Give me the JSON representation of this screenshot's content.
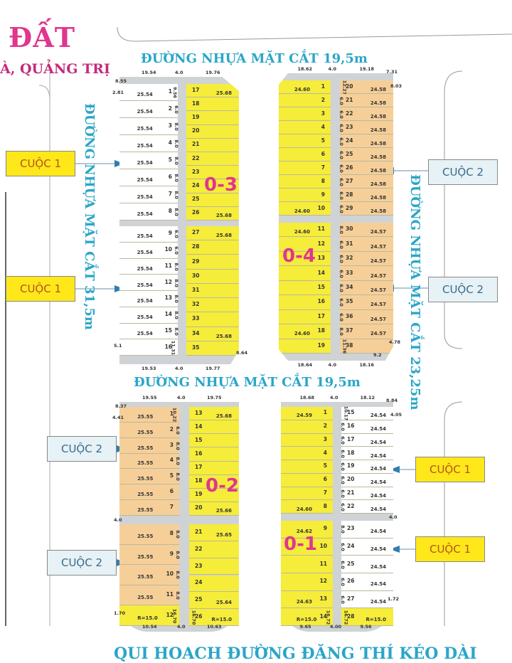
{
  "title": {
    "main": "ĐẤT",
    "sub": "À, QUẢNG TRỊ"
  },
  "roads": {
    "top": "ĐƯỜNG NHỰA MẶT CẮT 19,5m",
    "middle": "ĐƯỜNG NHỰA MẶT CẮT 19,5m",
    "left": "ĐƯỜNG NHỰA MẶT CẮT 31,5m",
    "right": "ĐƯỜNG NHỰA MẶT CẮT 23,25m",
    "bottom": "QUI HOACH ĐƯỜNG  ĐĂNG THÍ KÉO DÀI"
  },
  "colors": {
    "yellow": "#f6ec3a",
    "orange": "#f6cf98",
    "white": "#ffffff",
    "road": "#cfd3d6",
    "label": "#e0368f",
    "road_text": "#2aa6c8",
    "arrow": "#2f7fb0"
  },
  "callouts": [
    {
      "label": "CUỘC 1",
      "type": "c1"
    },
    {
      "label": "CUỘC 1",
      "type": "c1"
    },
    {
      "label": "CUỘC 2",
      "type": "c2"
    },
    {
      "label": "CUỘC 2",
      "type": "c2"
    },
    {
      "label": "CUỘC 2",
      "type": "c2"
    },
    {
      "label": "CUỘC 2",
      "type": "c2"
    },
    {
      "label": "CUỘC 1",
      "type": "c1"
    },
    {
      "label": "CUỘC 1",
      "type": "c1"
    }
  ],
  "blocks": [
    {
      "label": "0-3",
      "dims_top": [
        "19.54",
        "4.0",
        "19.76"
      ],
      "dims_bottom": [
        "19.53",
        "4.0",
        "19.77"
      ],
      "dims_edge": [
        "8.55",
        "2.81",
        "5.1",
        "8.64"
      ],
      "left": {
        "color": "#ffffff",
        "sections": [
          [
            {
              "no": "1",
              "len": "25.54",
              "w": "9.56"
            },
            {
              "no": "2",
              "len": "25.54",
              "w": "6.0"
            },
            {
              "no": "3",
              "len": "25.54",
              "w": "8.0"
            },
            {
              "no": "4",
              "len": "25.54",
              "w": "8.0"
            },
            {
              "no": "5",
              "len": "25.54",
              "w": "8.0"
            },
            {
              "no": "6",
              "len": "25.54",
              "w": "8.0"
            },
            {
              "no": "7",
              "len": "25.54",
              "w": "8.0"
            },
            {
              "no": "8",
              "len": "25.54",
              "w": "8.0"
            }
          ],
          [
            {
              "no": "9",
              "len": "25.54",
              "w": "6.0"
            },
            {
              "no": "10",
              "len": "25.54",
              "w": "6.0"
            },
            {
              "no": "11",
              "len": "25.54",
              "w": "8.0"
            },
            {
              "no": "12",
              "len": "25.54",
              "w": "8.0"
            },
            {
              "no": "13",
              "len": "25.54",
              "w": "8.0"
            },
            {
              "no": "14",
              "len": "25.54",
              "w": "8.0"
            },
            {
              "no": "15",
              "len": "25.54",
              "w": "8.0"
            },
            {
              "no": "16",
              "len": "",
              "w": "11.31"
            }
          ]
        ]
      },
      "right": {
        "color": "#f6ec3a",
        "sections": [
          [
            {
              "no": "17",
              "len": "25.68"
            },
            {
              "no": "18"
            },
            {
              "no": "19"
            },
            {
              "no": "20"
            },
            {
              "no": "21"
            },
            {
              "no": "22"
            },
            {
              "no": "23"
            },
            {
              "no": "24"
            },
            {
              "no": "25"
            },
            {
              "no": "26",
              "len": "25.68"
            }
          ],
          [
            {
              "no": "27",
              "len": "25.68"
            },
            {
              "no": "28"
            },
            {
              "no": "29"
            },
            {
              "no": "30"
            },
            {
              "no": "31"
            },
            {
              "no": "32"
            },
            {
              "no": "33"
            },
            {
              "no": "34",
              "len": "25.68"
            },
            {
              "no": "35"
            }
          ]
        ]
      }
    },
    {
      "label": "0-4",
      "dims_top": [
        "18.62",
        "4.0",
        "19.18"
      ],
      "dims_bottom": [
        "18.64",
        "4.0",
        "18.16"
      ],
      "dims_edge": [
        "7.31",
        "8.03",
        "9.2",
        "4.78"
      ],
      "left": {
        "color": "#f6ec3a",
        "sections": [
          [
            {
              "no": "1",
              "len": "24.60"
            },
            {
              "no": "2"
            },
            {
              "no": "3"
            },
            {
              "no": "4"
            },
            {
              "no": "5"
            },
            {
              "no": "6"
            },
            {
              "no": "7"
            },
            {
              "no": "8"
            },
            {
              "no": "9"
            },
            {
              "no": "10",
              "len": "24.60"
            }
          ],
          [
            {
              "no": "11",
              "len": "24.60"
            },
            {
              "no": "12"
            },
            {
              "no": "13"
            },
            {
              "no": "14"
            },
            {
              "no": "15"
            },
            {
              "no": "16"
            },
            {
              "no": "17"
            },
            {
              "no": "18",
              "len": "24.60"
            },
            {
              "no": "19"
            }
          ]
        ]
      },
      "right": {
        "color": "#f6cf98",
        "sections": [
          [
            {
              "no": "20",
              "len": "24.58",
              "w": "12.27"
            },
            {
              "no": "21",
              "len": "24.58",
              "w": "6.0"
            },
            {
              "no": "22",
              "len": "24.58",
              "w": "6.0"
            },
            {
              "no": "23",
              "len": "24.58",
              "w": "6.0"
            },
            {
              "no": "24",
              "len": "24.58",
              "w": "6.0"
            },
            {
              "no": "25",
              "len": "24.58",
              "w": "6.0"
            },
            {
              "no": "26",
              "len": "24.58",
              "w": "6.0"
            },
            {
              "no": "27",
              "len": "24.58",
              "w": "6.0"
            },
            {
              "no": "28",
              "len": "24.58",
              "w": "6.0"
            },
            {
              "no": "29",
              "len": "24.58",
              "w": "6.0"
            }
          ],
          [
            {
              "no": "30",
              "len": "24.57",
              "w": "8.0"
            },
            {
              "no": "31",
              "len": "24.57",
              "w": "6.0"
            },
            {
              "no": "32",
              "len": "24.57",
              "w": "6.0"
            },
            {
              "no": "33",
              "len": "24.57",
              "w": "6.0"
            },
            {
              "no": "34",
              "len": "24.57",
              "w": "6.0"
            },
            {
              "no": "35",
              "len": "24.57",
              "w": "6.0"
            },
            {
              "no": "36",
              "len": "24.57",
              "w": "6.0"
            },
            {
              "no": "37",
              "len": "24.57",
              "w": "8.0"
            },
            {
              "no": "38",
              "w": "11.36"
            }
          ]
        ]
      }
    },
    {
      "label": "0-2",
      "dims_top": [
        "19.55",
        "4.0",
        "19.75"
      ],
      "dims_bottom": [
        "10.54",
        "4.0",
        "10.63"
      ],
      "dims_edge": [
        "8.37",
        "4.41",
        "1.70",
        "4.0"
      ],
      "left": {
        "color": "#f6cf98",
        "sections": [
          [
            {
              "no": "1",
              "len": "25.55",
              "w": "10.22"
            },
            {
              "no": "2",
              "len": "25.55",
              "w": "6.0"
            },
            {
              "no": "3",
              "len": "25.55",
              "w": "8.0"
            },
            {
              "no": "4",
              "len": "25.55",
              "w": "8.0"
            },
            {
              "no": "5",
              "len": "25.55",
              "w": "8.0"
            },
            {
              "no": "6",
              "len": "25.55"
            },
            {
              "no": "7",
              "len": "25.55"
            }
          ],
          [
            {
              "no": "8",
              "len": "25.55",
              "w": "8.0"
            },
            {
              "no": "9",
              "len": "25.55",
              "w": "8.0"
            },
            {
              "no": "10",
              "len": "25.55",
              "w": "8.0"
            },
            {
              "no": "11",
              "len": "25.55",
              "w": "8.0"
            },
            {
              "no": "12",
              "len": "R=15.0",
              "w": "16.70",
              "color": "#f6ec3a"
            }
          ]
        ]
      },
      "right": {
        "color": "#f6ec3a",
        "sections": [
          [
            {
              "no": "13",
              "len": "25.68"
            },
            {
              "no": "14"
            },
            {
              "no": "15"
            },
            {
              "no": "16"
            },
            {
              "no": "17"
            },
            {
              "no": "18"
            },
            {
              "no": "19"
            },
            {
              "no": "20",
              "len": "25.66"
            }
          ],
          [
            {
              "no": "21",
              "len": "25.65"
            },
            {
              "no": "22"
            },
            {
              "no": "23"
            },
            {
              "no": "24"
            },
            {
              "no": "25",
              "len": "25.64"
            },
            {
              "no": "26",
              "len": "R=15.0",
              "w": "16.70"
            }
          ]
        ]
      }
    },
    {
      "label": "0-1",
      "dims_top": [
        "18.68",
        "4.0",
        "18.12"
      ],
      "dims_bottom": [
        "9.65",
        "4.00",
        "9.56"
      ],
      "dims_edge": [
        "8.84",
        "4.05",
        "1.72",
        "4.0"
      ],
      "left": {
        "color": "#f6ec3a",
        "sections": [
          [
            {
              "no": "1",
              "len": "24.59"
            },
            {
              "no": "2"
            },
            {
              "no": "3"
            },
            {
              "no": "4"
            },
            {
              "no": "5"
            },
            {
              "no": "6"
            },
            {
              "no": "7"
            },
            {
              "no": "8",
              "len": "24.60"
            }
          ],
          [
            {
              "no": "9",
              "len": "24.62"
            },
            {
              "no": "10"
            },
            {
              "no": "11"
            },
            {
              "no": "12"
            },
            {
              "no": "13",
              "len": "24.63"
            },
            {
              "no": "14",
              "len": "R=15.0",
              "w": "16.72"
            }
          ]
        ]
      },
      "right": {
        "color": "#ffffff",
        "sections": [
          [
            {
              "no": "15",
              "len": "24.54",
              "w": "10.17"
            },
            {
              "no": "16",
              "len": "24.54",
              "w": "6.0"
            },
            {
              "no": "17",
              "len": "24.54",
              "w": "6.0"
            },
            {
              "no": "18",
              "len": "24.54",
              "w": "6.0"
            },
            {
              "no": "19",
              "len": "24.54",
              "w": "6.0"
            },
            {
              "no": "20",
              "len": "24.54",
              "w": "6.0"
            },
            {
              "no": "21",
              "len": "24.54",
              "w": "6.0"
            },
            {
              "no": "22",
              "len": "24.54",
              "w": "6.0"
            }
          ],
          [
            {
              "no": "23",
              "len": "24.54",
              "w": "8.0"
            },
            {
              "no": "24",
              "len": "24.54",
              "w": "6.0"
            },
            {
              "no": "25",
              "len": "24.54",
              "w": "6.0"
            },
            {
              "no": "26",
              "len": "24.54",
              "w": "6.0"
            },
            {
              "no": "27",
              "len": "24.54",
              "w": "6.0"
            },
            {
              "no": "28",
              "len": "R=15.0",
              "w": "16.72",
              "color": "#f6ec3a"
            }
          ]
        ]
      }
    }
  ]
}
